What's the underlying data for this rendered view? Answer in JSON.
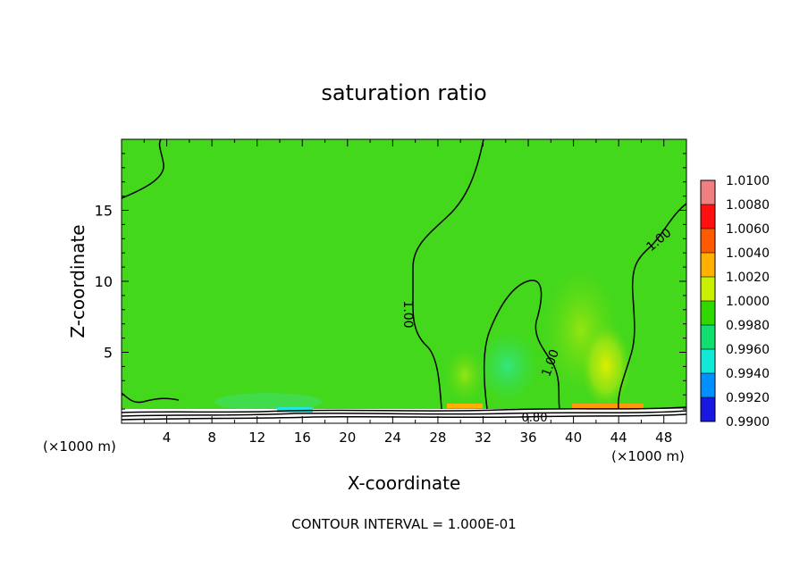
{
  "chart_data": {
    "type": "heatmap",
    "title": "saturation ratio",
    "xlabel": "X-coordinate",
    "ylabel": "Z-coordinate",
    "x_unit_left": "(×1000 m)",
    "x_unit_right": "(×1000 m)",
    "xlim": [
      0,
      50
    ],
    "ylim": [
      0,
      20
    ],
    "x_ticks": [
      "4",
      "8",
      "12",
      "16",
      "20",
      "24",
      "28",
      "32",
      "36",
      "40",
      "44",
      "48"
    ],
    "y_ticks": [
      "5",
      "10",
      "15"
    ],
    "colorbar": {
      "labels": [
        "1.0100",
        "1.0080",
        "1.0060",
        "1.0040",
        "1.0020",
        "1.0000",
        "0.9980",
        "0.9960",
        "0.9940",
        "0.9920",
        "0.9900"
      ],
      "colors": [
        "#f08080",
        "#ff1010",
        "#ff5a00",
        "#ffb000",
        "#c8f000",
        "#30d800",
        "#10e070",
        "#10e8d8",
        "#0090ff",
        "#1818e0",
        "#800080"
      ]
    },
    "contour_labels": [
      "1.00",
      "1.00",
      "1.00",
      "0.80"
    ],
    "footer": "CONTOUR INTERVAL = 1.000E-01"
  }
}
